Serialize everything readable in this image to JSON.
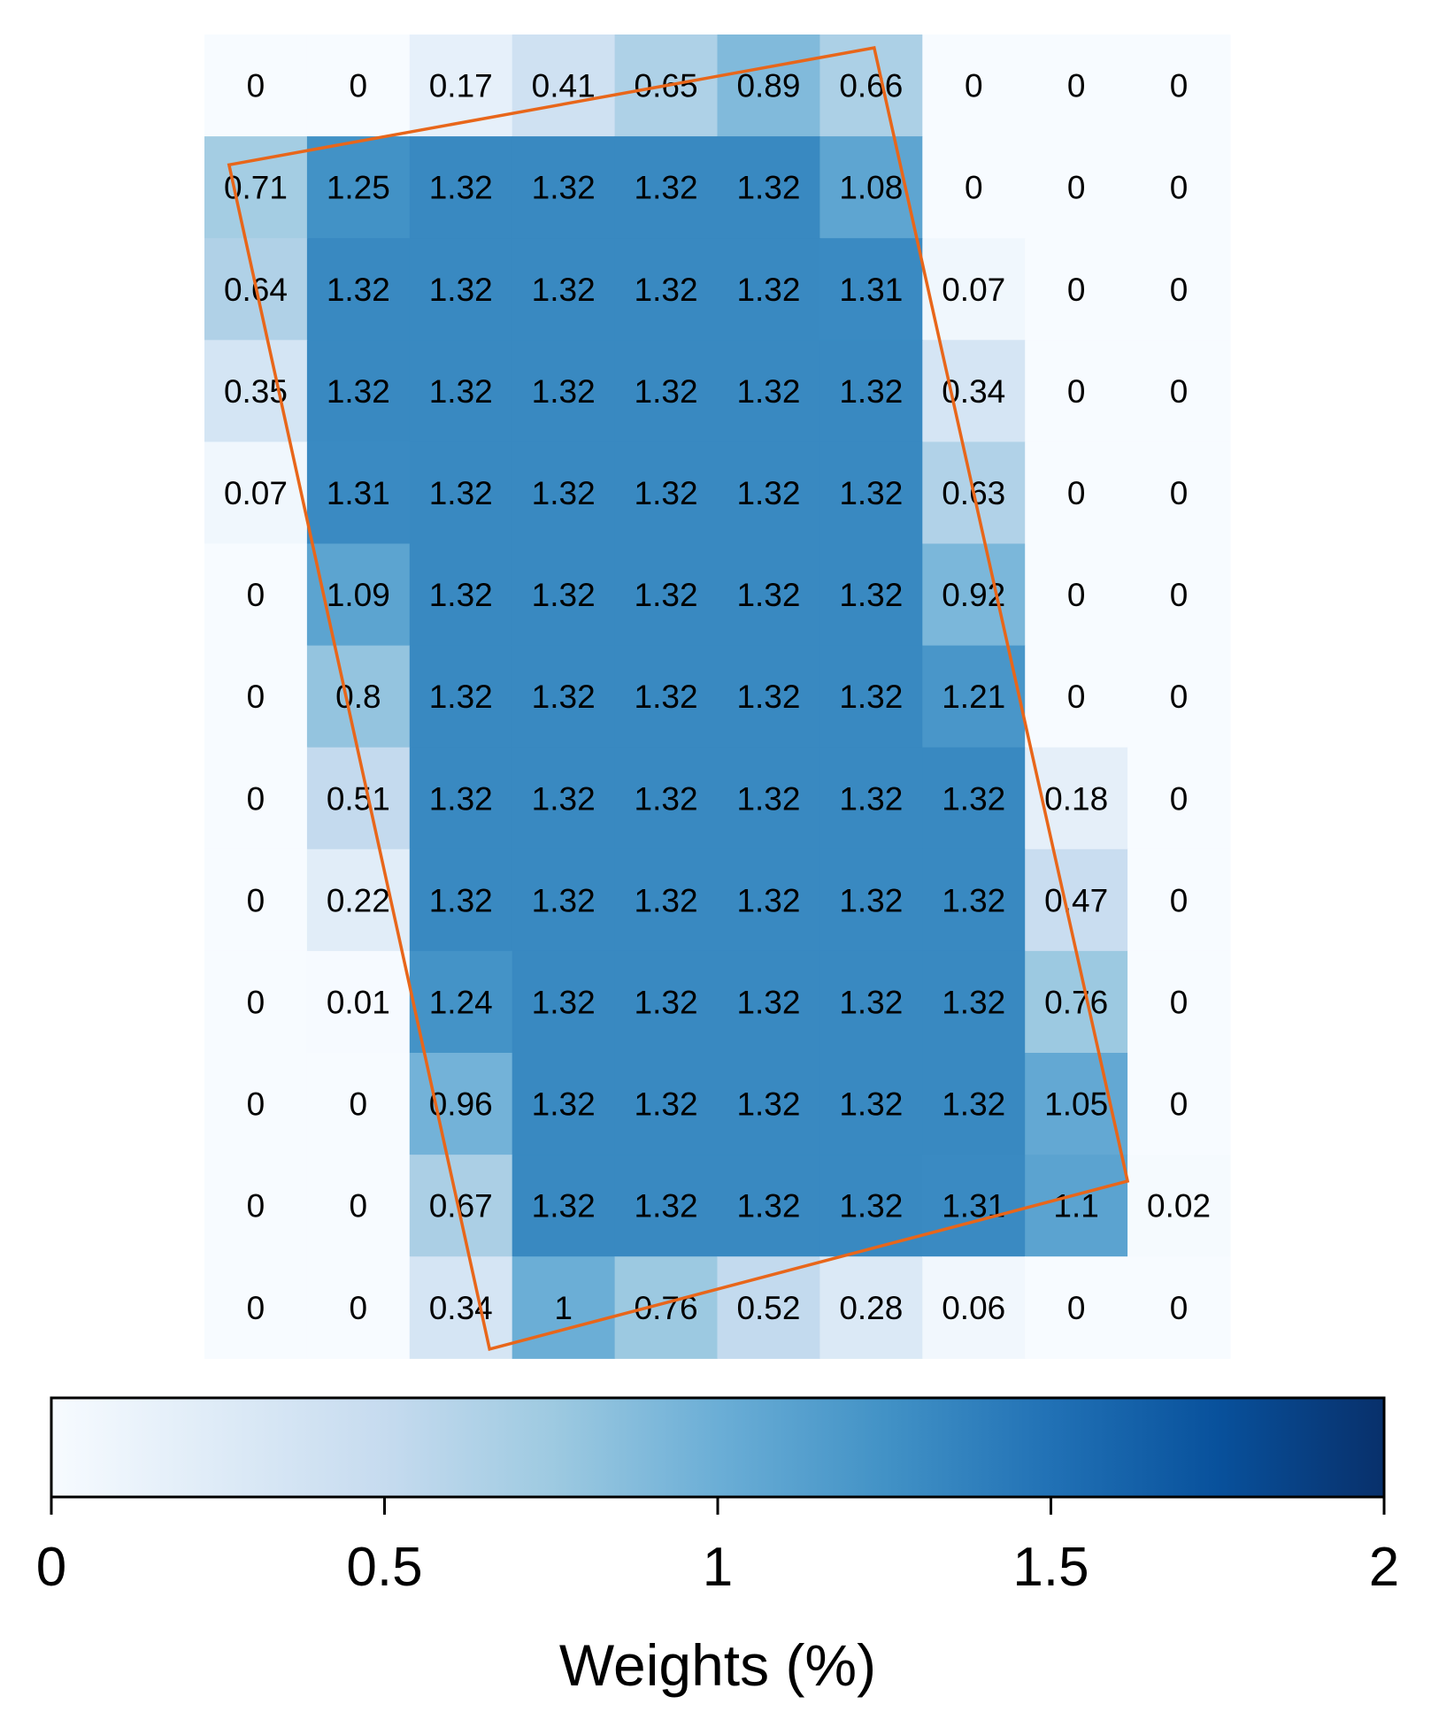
{
  "chart_data": {
    "type": "heatmap",
    "title": "",
    "rows": 13,
    "cols": 10,
    "values": [
      [
        0,
        0,
        0.17,
        0.41,
        0.65,
        0.89,
        0.66,
        0,
        0,
        0
      ],
      [
        0.71,
        1.25,
        1.32,
        1.32,
        1.32,
        1.32,
        1.08,
        0,
        0,
        0
      ],
      [
        0.64,
        1.32,
        1.32,
        1.32,
        1.32,
        1.32,
        1.31,
        0.07,
        0,
        0
      ],
      [
        0.35,
        1.32,
        1.32,
        1.32,
        1.32,
        1.32,
        1.32,
        0.34,
        0,
        0
      ],
      [
        0.07,
        1.31,
        1.32,
        1.32,
        1.32,
        1.32,
        1.32,
        0.63,
        0,
        0
      ],
      [
        0,
        1.09,
        1.32,
        1.32,
        1.32,
        1.32,
        1.32,
        0.92,
        0,
        0
      ],
      [
        0,
        0.8,
        1.32,
        1.32,
        1.32,
        1.32,
        1.32,
        1.21,
        0,
        0
      ],
      [
        0,
        0.51,
        1.32,
        1.32,
        1.32,
        1.32,
        1.32,
        1.32,
        0.18,
        0
      ],
      [
        0,
        0.22,
        1.32,
        1.32,
        1.32,
        1.32,
        1.32,
        1.32,
        0.47,
        0
      ],
      [
        0,
        0.01,
        1.24,
        1.32,
        1.32,
        1.32,
        1.32,
        1.32,
        0.76,
        0
      ],
      [
        0,
        0,
        0.96,
        1.32,
        1.32,
        1.32,
        1.32,
        1.32,
        1.05,
        0
      ],
      [
        0,
        0,
        0.67,
        1.32,
        1.32,
        1.32,
        1.32,
        1.31,
        1.1,
        0.02
      ],
      [
        0,
        0,
        0.34,
        1,
        0.76,
        0.52,
        0.28,
        0.06,
        0,
        0
      ]
    ],
    "colormap": "Blues",
    "colorbar": {
      "label": "Weights (%)",
      "range": [
        0,
        2
      ],
      "ticks": [
        "0",
        "0.5",
        "1",
        "1.5",
        "2"
      ],
      "orientation": "horizontal",
      "placement": "bottom"
    },
    "overlay_polygon": {
      "description": "rotated rectangle outline",
      "color": "#e8661a",
      "vertices_in_grid_units": [
        [
          0.24,
          1.28
        ],
        [
          6.53,
          0.13
        ],
        [
          9.0,
          11.26
        ],
        [
          2.78,
          12.91
        ]
      ]
    },
    "colormap_stops": [
      "#f7fbff",
      "#deebf7",
      "#c6dbef",
      "#9ecae1",
      "#6baed6",
      "#4292c6",
      "#2171b5",
      "#08519c",
      "#08306b"
    ]
  }
}
